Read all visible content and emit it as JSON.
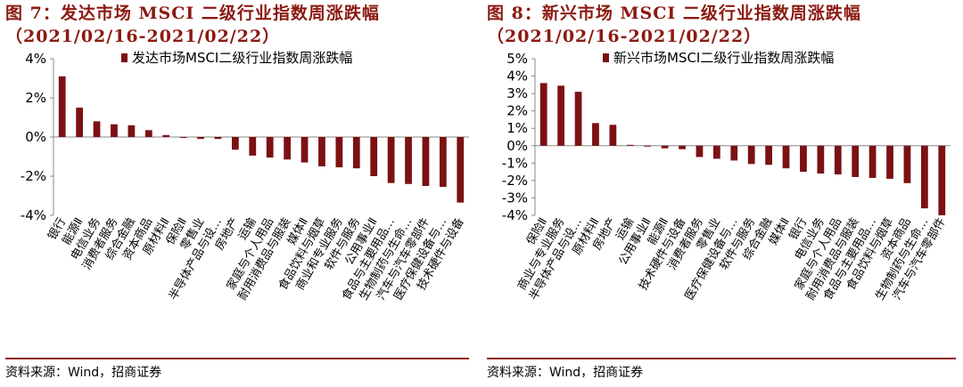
{
  "theme": {
    "bar_color": "#7b1113",
    "title_color": "#8c1a12"
  },
  "source": "资料来源：Wind，招商证券",
  "chart_data": [
    {
      "type": "bar",
      "title": "图 7：发达市场 MSCI 二级行业指数周涨跌幅",
      "subtitle": "（2021/02/16-2021/02/22）",
      "legend": "发达市场MSCI二级行业指数周涨跌幅",
      "legend_position": "top-right",
      "ylim": [
        -4,
        4
      ],
      "yticks": [
        -4,
        -2,
        0,
        2,
        4
      ],
      "ytick_labels": [
        "-4%",
        "-2%",
        "0%",
        "2%",
        "4%"
      ],
      "grid": false,
      "categories": [
        "银行",
        "能源Ⅱ",
        "电信业务",
        "消费者服务",
        "综合金融",
        "资本商品",
        "原材料Ⅱ",
        "保险Ⅱ",
        "零售业",
        "半导体产品与设…",
        "房地产",
        "运输",
        "家庭与个人用品",
        "耐用消费品与服装",
        "媒体Ⅱ",
        "食品饮料与烟草",
        "商业和专业服务",
        "软件与服务",
        "公用事业Ⅱ",
        "食品与主要用品…",
        "生物制药与生命…",
        "汽车与汽车零部件",
        "医疗保健设备与…",
        "技术硬件与设备"
      ],
      "values": [
        3.1,
        1.5,
        0.8,
        0.65,
        0.6,
        0.35,
        0.1,
        -0.05,
        -0.1,
        -0.1,
        -0.65,
        -0.95,
        -1.05,
        -1.15,
        -1.3,
        -1.5,
        -1.55,
        -1.6,
        -2.0,
        -2.35,
        -2.4,
        -2.5,
        -2.55,
        -3.35
      ]
    },
    {
      "type": "bar",
      "title": "图 8：新兴市场 MSCI 二级行业指数周涨跌幅",
      "subtitle": "（2021/02/16-2021/02/22）",
      "legend": "新兴市场MSCI二级行业指数周涨跌幅",
      "legend_position": "top-right",
      "ylim": [
        -4,
        5
      ],
      "yticks": [
        -4,
        -3,
        -2,
        -1,
        0,
        1,
        2,
        3,
        4,
        5
      ],
      "ytick_labels": [
        "-4%",
        "-3%",
        "-2%",
        "-1%",
        "0%",
        "1%",
        "2%",
        "3%",
        "4%",
        "5%"
      ],
      "grid": false,
      "categories": [
        "保险Ⅱ",
        "商业与专业服务",
        "半导体产品与设…",
        "原材料Ⅱ",
        "房地产",
        "运输",
        "公用事业Ⅱ",
        "能源Ⅱ",
        "技术硬件与设备",
        "消费者服务",
        "零售业",
        "医疗保健设备与…",
        "软件与服务",
        "综合金融",
        "媒体Ⅱ",
        "银行",
        "电信业务",
        "家庭与个人用品",
        "耐用消费品与服装",
        "食品与主要用品…",
        "食品饮料与烟草",
        "资本商品",
        "生物制药与生命…",
        "汽车与汽车零部件"
      ],
      "values": [
        3.6,
        3.45,
        3.1,
        1.3,
        1.2,
        0.05,
        -0.05,
        -0.15,
        -0.2,
        -0.65,
        -0.75,
        -0.85,
        -1.05,
        -1.1,
        -1.3,
        -1.5,
        -1.6,
        -1.65,
        -1.8,
        -1.85,
        -1.9,
        -2.15,
        -3.6,
        -4.0
      ]
    }
  ]
}
